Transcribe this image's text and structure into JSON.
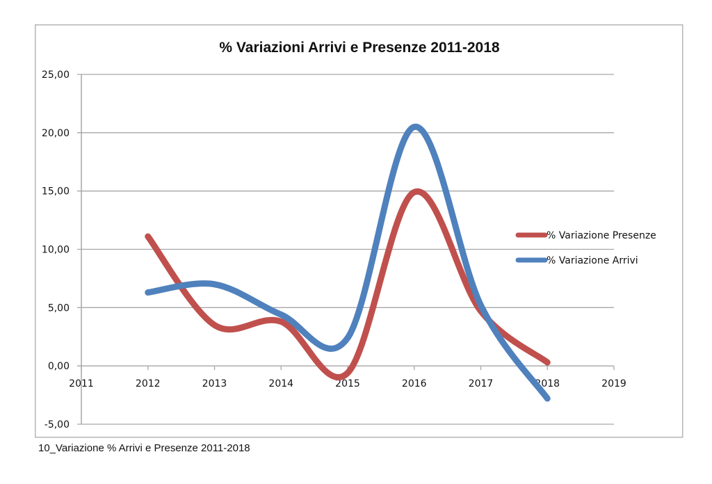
{
  "chart_data": {
    "type": "line",
    "title": "% Variazioni Arrivi e Presenze 2011-2018",
    "xlabel": "",
    "ylabel": "",
    "x_ticks": [
      "2011",
      "2012",
      "2013",
      "2014",
      "2015",
      "2016",
      "2017",
      "2018",
      "2019"
    ],
    "y_ticks": [
      "25,00",
      "20,00",
      "15,00",
      "10,00",
      "5,00",
      "0,00",
      "-5,00"
    ],
    "xlim": [
      2011,
      2019
    ],
    "ylim": [
      -5,
      25
    ],
    "grid": "horizontal",
    "smooth": true,
    "legend_position": "right",
    "x": [
      2012,
      2013,
      2014,
      2015,
      2016,
      2017,
      2018
    ],
    "series": [
      {
        "name": "% Variazione Presenze",
        "color": "#c0504d",
        "values": [
          11.1,
          3.5,
          3.8,
          -0.6,
          14.9,
          4.7,
          0.3
        ]
      },
      {
        "name": "% Variazione Arrivi",
        "color": "#4f81bd",
        "values": [
          6.3,
          7.0,
          4.4,
          2.4,
          20.5,
          5.2,
          -2.8
        ]
      }
    ]
  },
  "caption": "10_Variazione % Arrivi e Presenze 2011-2018"
}
